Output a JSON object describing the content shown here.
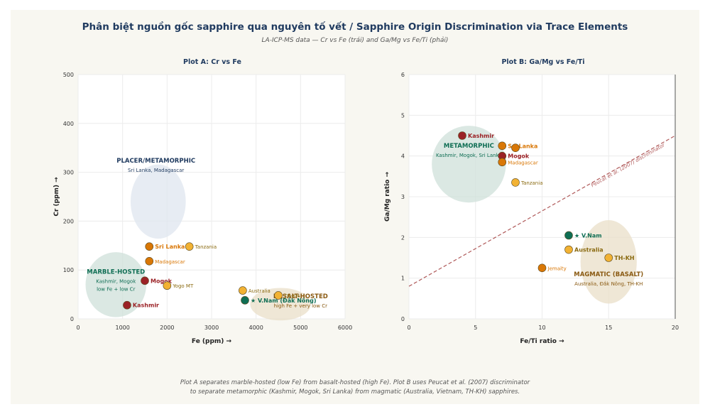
{
  "title": "Phân biệt nguồn gốc sapphire qua nguyên tố vết / Sapphire Origin Discrimination via Trace Elements",
  "subtitle": "LA-ICP-MS data — Cr vs Fe (trái) and Ga/Mg vs Fe/Ti (phải)",
  "caption": [
    "Plot A separates marble-hosted (low Fe) from basalt-hosted (high Fe). Plot B uses Peucat et al. (2007) discriminator",
    "to separate metamorphic (Kashmir, Mogok, Sri Lanka) from magmatic (Australia, Vietnam, TH-KH) sapphires."
  ],
  "colors": {
    "kashmir": "#9b2226",
    "mogok": "#9b2226",
    "orange": "#d97706",
    "yellow": "#f2b233",
    "vietnam": "#0f6e54",
    "metamorphic_fill": "#cfe0da",
    "magmatic_fill": "#eadfc8",
    "placer_fill": "#dfe5ef",
    "discriminator": "#b05a5a"
  },
  "chart_data": [
    {
      "type": "scatter",
      "title": "Plot A: Cr vs Fe",
      "xlabel": "Fe (ppm) →",
      "ylabel": "Cr (ppm) →",
      "xlim": [
        0,
        6000
      ],
      "ylim": [
        0,
        500
      ],
      "xticks": [
        "0",
        "1000",
        "2000",
        "3000",
        "4000",
        "5000",
        "6000"
      ],
      "yticks": [
        "0",
        "100",
        "200",
        "300",
        "400",
        "500"
      ],
      "grid": true,
      "regions": [
        {
          "label": "PLACER/METAMORPHIC",
          "sublabel": "Sri Lanka, Madagascar",
          "cx": 1800,
          "cy": 240,
          "rx": 1000,
          "ry": 80,
          "fill": "placer"
        },
        {
          "label": "MARBLE-HOSTED",
          "sublabel": "Kashmir, Mogok\nlow Fe + low Cr",
          "cx": 850,
          "cy": 70,
          "rx": 1100,
          "ry": 70,
          "fill": "metamorphic"
        },
        {
          "label": "BASALT-HOSTED",
          "sublabel": "high Fe + very low Cr",
          "cx": 4550,
          "cy": 30,
          "rx": 1100,
          "ry": 35,
          "fill": "magmatic"
        }
      ],
      "points": [
        {
          "name": "Kashmir",
          "x": 1100,
          "y": 28,
          "color": "kashmir",
          "bold": true
        },
        {
          "name": "Mogok",
          "x": 1500,
          "y": 78,
          "color": "mogok",
          "bold": true
        },
        {
          "name": "Yogo MT",
          "x": 2000,
          "y": 68,
          "color": "yellow",
          "bold": false
        },
        {
          "name": "Sri Lanka",
          "x": 1600,
          "y": 148,
          "color": "orange",
          "bold": true
        },
        {
          "name": "Madagascar",
          "x": 1600,
          "y": 118,
          "color": "orange",
          "bold": false
        },
        {
          "name": "Tanzania",
          "x": 2500,
          "y": 148,
          "color": "yellow",
          "bold": false
        },
        {
          "name": "Australia",
          "x": 3700,
          "y": 58,
          "color": "yellow",
          "bold": false
        },
        {
          "name": "TH-KH",
          "x": 4500,
          "y": 48,
          "color": "yellow",
          "bold": false
        },
        {
          "name": "★ V.Nam (Đắk Nông)",
          "x": 3750,
          "y": 38,
          "color": "vietnam",
          "bold": true
        }
      ]
    },
    {
      "type": "scatter",
      "title": "Plot B: Ga/Mg vs Fe/Ti",
      "xlabel": "Fe/Ti ratio →",
      "ylabel": "Ga/Mg ratio →",
      "xlim": [
        0,
        20
      ],
      "ylim": [
        0,
        6
      ],
      "xticks": [
        "0",
        "5",
        "10",
        "15",
        "20"
      ],
      "yticks": [
        "0",
        "1",
        "2",
        "3",
        "4",
        "5",
        "6"
      ],
      "grid": true,
      "discriminator": {
        "label": "Peucat et al. (2007) discriminator",
        "x1": 0,
        "y1": 0.8,
        "x2": 20,
        "y2": 4.5
      },
      "regions": [
        {
          "label": "METAMORPHIC",
          "sublabel": "Kashmir, Mogok, Sri Lanka",
          "cx": 4.5,
          "cy": 3.8,
          "rx": 5.8,
          "ry": 1.15,
          "fill": "metamorphic"
        },
        {
          "label": "MAGMATIC (BASALT)",
          "sublabel": "Australia, Đắk Nông, TH-KH",
          "cx": 15,
          "cy": 1.4,
          "rx": 4.4,
          "ry": 1.25,
          "fill": "magmatic"
        }
      ],
      "points": [
        {
          "name": "Kashmir",
          "x": 4,
          "y": 4.5,
          "color": "kashmir",
          "bold": true
        },
        {
          "name": "Sri Lanka",
          "x": 7,
          "y": 4.25,
          "color": "orange",
          "bold": true
        },
        {
          "name": "",
          "x": 8,
          "y": 4.2,
          "color": "orange",
          "bold": false
        },
        {
          "name": "Mogok",
          "x": 7,
          "y": 4.0,
          "color": "mogok",
          "bold": true
        },
        {
          "name": "Madagascar",
          "x": 7,
          "y": 3.85,
          "color": "orange",
          "bold": false
        },
        {
          "name": "Tanzania",
          "x": 8,
          "y": 3.35,
          "color": "yellow",
          "bold": false
        },
        {
          "name": "★ V.Nam",
          "x": 12,
          "y": 2.05,
          "color": "vietnam",
          "bold": true
        },
        {
          "name": "Australia",
          "x": 12,
          "y": 1.7,
          "color": "yellow",
          "bold": true
        },
        {
          "name": "TH-KH",
          "x": 15,
          "y": 1.5,
          "color": "yellow",
          "bold": true
        },
        {
          "name": "Jemaity",
          "x": 10,
          "y": 1.25,
          "color": "orange",
          "bold": false
        }
      ]
    }
  ]
}
